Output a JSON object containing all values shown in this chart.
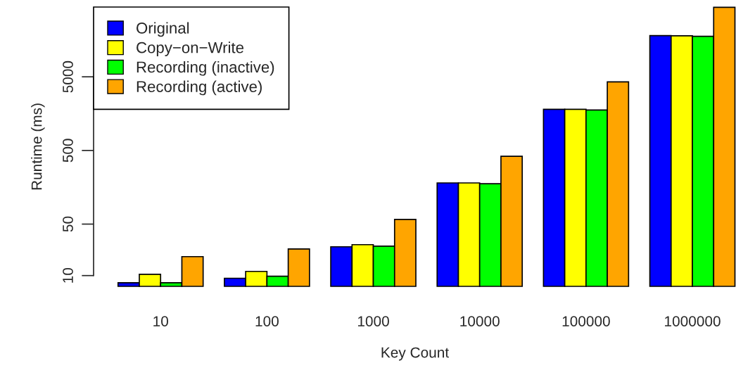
{
  "chart_data": {
    "type": "bar",
    "xlabel": "Key Count",
    "ylabel": "Runtime (ms)",
    "categories": [
      "10",
      "100",
      "1000",
      "10000",
      "100000",
      "1000000"
    ],
    "series": [
      {
        "name": "Original",
        "color": "#0000ff",
        "values": [
          8.0,
          9.2,
          24.6,
          181,
          1810,
          18100
        ]
      },
      {
        "name": "Copy−on−Write",
        "color": "#ffff00",
        "values": [
          10.4,
          11.4,
          26.3,
          181,
          1810,
          18000
        ]
      },
      {
        "name": "Recording (inactive)",
        "color": "#00ff00",
        "values": [
          8.0,
          9.8,
          25.1,
          177,
          1770,
          17700
        ]
      },
      {
        "name": "Recording (active)",
        "color": "#ffa500",
        "values": [
          18.1,
          23.0,
          57.8,
          416,
          4260,
          44000
        ]
      }
    ],
    "log": "y",
    "ylim": [
      7.14,
      44300
    ],
    "yticks": [
      10,
      50,
      500,
      5000
    ],
    "grid": false,
    "legend": "top left"
  }
}
